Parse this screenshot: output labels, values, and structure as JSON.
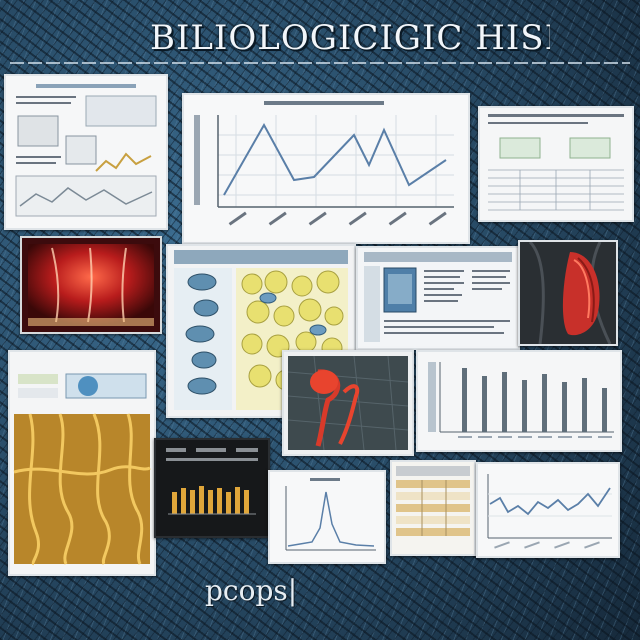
{
  "title": "BILIOLOGICIGIC HISI",
  "footer_text": "pcops|",
  "colors": {
    "background": "#2a4f6b",
    "panel": "#f4f5f6",
    "line_series": "#5a7fa8",
    "accent_red": "#d8312a",
    "accent_gold": "#e0a63a",
    "accent_yellow": "#e8e070"
  },
  "panels": [
    {
      "name": "document-panel-top-left",
      "kind": "document"
    },
    {
      "name": "line-chart-panel-top",
      "kind": "line-chart"
    },
    {
      "name": "table-panel-top-right",
      "kind": "table"
    },
    {
      "name": "red-glow-image-panel",
      "kind": "image"
    },
    {
      "name": "cell-grid-panel",
      "kind": "illustration"
    },
    {
      "name": "blue-document-panel",
      "kind": "document"
    },
    {
      "name": "red-specimen-image-panel",
      "kind": "image"
    },
    {
      "name": "golden-tissue-panel",
      "kind": "illustration"
    },
    {
      "name": "dark-bar-chart-panel",
      "kind": "bar-chart"
    },
    {
      "name": "red-organism-panel",
      "kind": "image"
    },
    {
      "name": "bar-chart-panel-right",
      "kind": "bar-chart"
    },
    {
      "name": "peak-chart-panel",
      "kind": "line-chart"
    },
    {
      "name": "small-table-panel",
      "kind": "table"
    },
    {
      "name": "wave-chart-panel",
      "kind": "line-chart"
    }
  ]
}
